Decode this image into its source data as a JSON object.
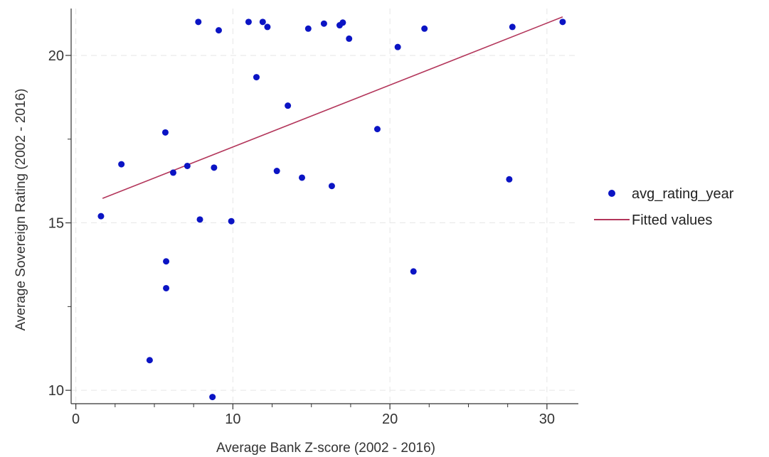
{
  "chart_data": {
    "type": "scatter",
    "xlabel": "Average Bank Z-score (2002 - 2016)",
    "ylabel": "Average Sovereign Rating (2002 - 2016)",
    "xlim": [
      -0.3,
      32
    ],
    "ylim": [
      9.6,
      21.4
    ],
    "xticks": [
      0,
      10,
      20,
      30
    ],
    "xminor": [
      2.5,
      5,
      7.5,
      12.5,
      15,
      17.5,
      22.5,
      25,
      27.5
    ],
    "yticks": [
      10,
      15,
      20
    ],
    "yminor": [
      12.5,
      17.5
    ],
    "grid": true,
    "legend_position": "right",
    "colors": {
      "points": "#0b14c4",
      "line": "#b3365b"
    },
    "series": [
      {
        "name": "avg_rating_year",
        "kind": "scatter",
        "points": [
          [
            1.6,
            15.2
          ],
          [
            2.9,
            16.75
          ],
          [
            4.7,
            10.9
          ],
          [
            5.7,
            17.7
          ],
          [
            5.75,
            13.85
          ],
          [
            5.75,
            13.05
          ],
          [
            6.2,
            16.5
          ],
          [
            7.1,
            16.7
          ],
          [
            7.8,
            21.0
          ],
          [
            7.9,
            15.1
          ],
          [
            8.7,
            9.8
          ],
          [
            8.8,
            16.65
          ],
          [
            9.1,
            20.75
          ],
          [
            9.9,
            15.05
          ],
          [
            11.0,
            21.0
          ],
          [
            11.5,
            19.35
          ],
          [
            11.9,
            21.0
          ],
          [
            12.2,
            20.85
          ],
          [
            12.8,
            16.55
          ],
          [
            13.5,
            18.5
          ],
          [
            14.4,
            16.35
          ],
          [
            14.8,
            20.8
          ],
          [
            15.8,
            20.95
          ],
          [
            16.3,
            16.1
          ],
          [
            16.8,
            20.9
          ],
          [
            17.0,
            20.98
          ],
          [
            17.4,
            20.5
          ],
          [
            19.2,
            17.8
          ],
          [
            20.5,
            20.25
          ],
          [
            21.5,
            13.55
          ],
          [
            22.2,
            20.8
          ],
          [
            27.6,
            16.3
          ],
          [
            27.8,
            20.85
          ],
          [
            31.0,
            21.0
          ]
        ]
      },
      {
        "name": "Fitted values",
        "kind": "line",
        "points": [
          [
            1.7,
            15.73
          ],
          [
            31.0,
            21.15
          ]
        ]
      }
    ]
  }
}
